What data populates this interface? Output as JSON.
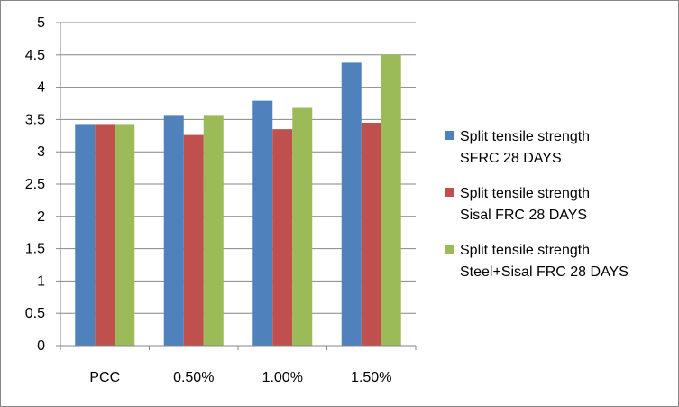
{
  "chart_data": {
    "type": "bar",
    "title": "",
    "xlabel": "",
    "ylabel": "",
    "categories": [
      "PCC",
      "0.50%",
      "1.00%",
      "1.50%"
    ],
    "ylim": [
      0,
      5
    ],
    "yticks": [
      "0",
      "0.5",
      "1",
      "1.5",
      "2",
      "2.5",
      "3",
      "3.5",
      "4",
      "4.5",
      "5"
    ],
    "grid": true,
    "legend_position": "right",
    "series": [
      {
        "name": "Split tensile strength SFRC 28 DAYS",
        "color": "#4F81BD",
        "values": [
          3.43,
          3.57,
          3.79,
          4.38
        ]
      },
      {
        "name": "Split tensile strength Sisal FRC 28 DAYS",
        "color": "#C0504D",
        "values": [
          3.43,
          3.26,
          3.35,
          3.45
        ]
      },
      {
        "name": "Split tensile strength Steel+Sisal FRC 28 DAYS",
        "color": "#9BBB59",
        "values": [
          3.43,
          3.57,
          3.68,
          4.5
        ]
      }
    ]
  }
}
